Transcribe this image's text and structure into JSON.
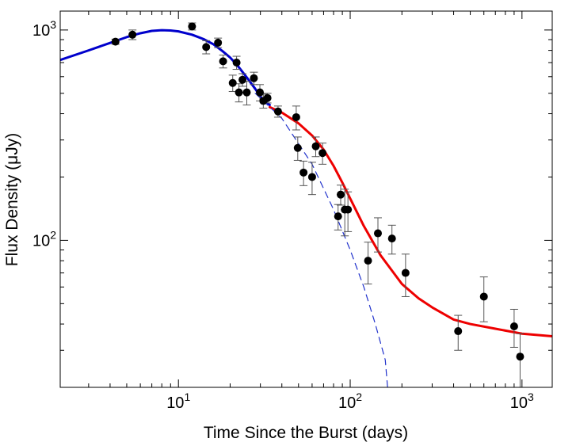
{
  "chart_data": {
    "type": "scatter",
    "title": "",
    "xlabel": "Time Since the Burst  (days)",
    "ylabel": "Flux Density  (μJy)",
    "xscale": "log",
    "yscale": "log",
    "xlim": [
      2.05,
      1500
    ],
    "ylim": [
      20,
      1230
    ],
    "x_ticks": [
      {
        "value": 10,
        "base": "10",
        "exp": "1"
      },
      {
        "value": 100,
        "base": "10",
        "exp": "2"
      },
      {
        "value": 1000,
        "base": "10",
        "exp": "3"
      }
    ],
    "y_ticks": [
      {
        "value": 100,
        "base": "10",
        "exp": "2"
      },
      {
        "value": 1000,
        "base": "10",
        "exp": "3"
      }
    ],
    "colors": {
      "points": "#000000",
      "errorbars": "#555555",
      "early_model": "#0000cc",
      "late_model": "#ee0000",
      "extrapolation": "#2233cc"
    },
    "series": [
      {
        "name": "observations",
        "kind": "points_with_errorbars",
        "x": [
          4.3,
          5.4,
          12.0,
          14.5,
          17.0,
          18.2,
          20.7,
          21.8,
          22.5,
          23.6,
          25.0,
          27.5,
          29.8,
          31.2,
          33.0,
          38.0,
          48.5,
          49.5,
          53.5,
          60.0,
          63.0,
          69.0,
          85.0,
          88.0,
          93.0,
          97.0,
          127.0,
          145.0,
          175.0,
          210.0,
          425.0,
          600.0,
          900.0,
          975.0
        ],
        "y": [
          880,
          950,
          1040,
          830,
          870,
          710,
          560,
          700,
          505,
          580,
          505,
          590,
          505,
          460,
          475,
          410,
          385,
          275,
          210,
          200,
          280,
          260,
          130,
          165,
          140,
          140,
          80,
          108,
          102,
          70,
          37,
          54,
          39,
          28
        ],
        "yerr": [
          25,
          50,
          40,
          60,
          45,
          50,
          50,
          50,
          50,
          40,
          65,
          40,
          45,
          35,
          25,
          25,
          50,
          35,
          28,
          35,
          30,
          30,
          18,
          18,
          35,
          30,
          18,
          20,
          16,
          16,
          7,
          13,
          8,
          8
        ]
      },
      {
        "name": "early-time model",
        "kind": "line",
        "style": "solid",
        "x": [
          2.05,
          3.0,
          4.0,
          5.0,
          6.0,
          7.0,
          8.0,
          9.0,
          10.0,
          12.0,
          14.0,
          16.0,
          18.0,
          20.0,
          22.0,
          25.0,
          28.0,
          31.0,
          34.0
        ],
        "y": [
          720,
          800,
          868,
          925,
          965,
          990,
          998,
          995,
          985,
          950,
          905,
          855,
          795,
          740,
          680,
          595,
          525,
          465,
          440
        ]
      },
      {
        "name": "late-time model",
        "kind": "line",
        "style": "solid",
        "x": [
          34,
          40,
          50,
          60,
          70,
          80,
          90,
          100,
          120,
          150,
          200,
          250,
          300,
          400,
          500,
          700,
          1000,
          1500
        ],
        "y": [
          430,
          405,
          360,
          315,
          270,
          226,
          188,
          158,
          117,
          85,
          62,
          53,
          48,
          42,
          40,
          38,
          36,
          35
        ]
      },
      {
        "name": "extrapolated decay",
        "kind": "line",
        "style": "dashed",
        "x": [
          28,
          40,
          60,
          80,
          100,
          120,
          140,
          160,
          165
        ],
        "y": [
          500,
          380,
          230,
          140,
          90,
          60,
          40,
          27,
          20
        ]
      }
    ]
  }
}
